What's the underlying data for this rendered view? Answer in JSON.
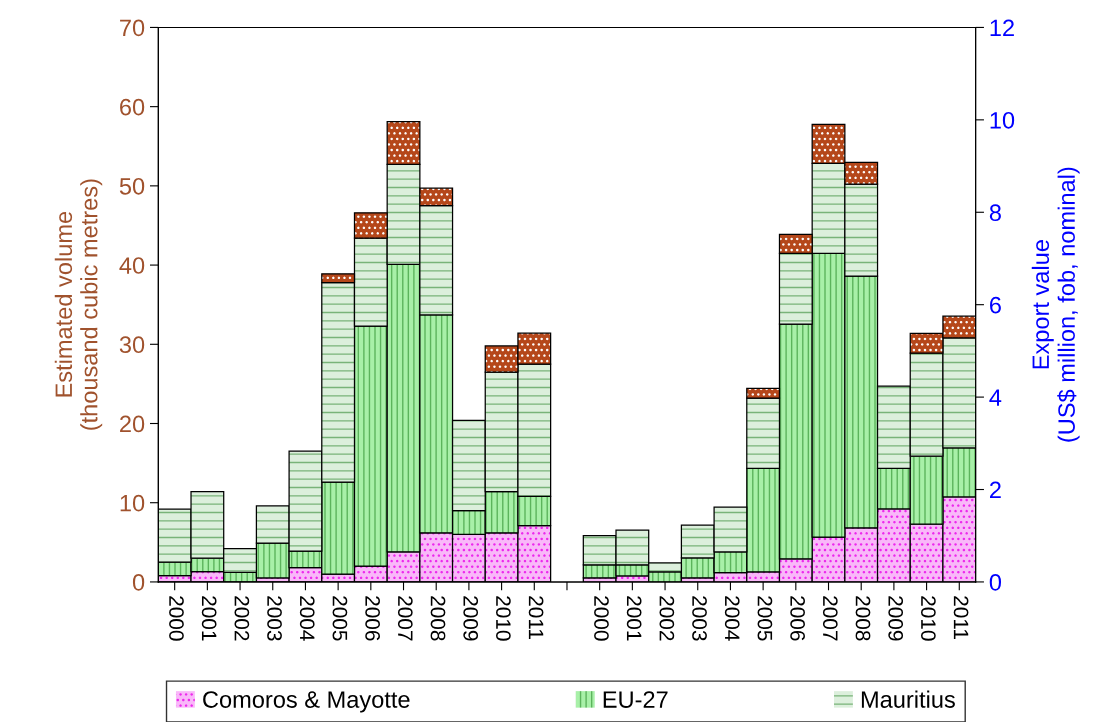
{
  "chart_data": {
    "type": "bar",
    "stacked": true,
    "legend": "bottom",
    "ylabel": "Estimated volume\n(thousand cubic metres)",
    "y2label": "Export value\n(US$ million, fob, nominal)",
    "categories": [
      "2000",
      "2001",
      "2002",
      "2003",
      "2004",
      "2005",
      "2006",
      "2007",
      "2008",
      "2009",
      "2010",
      "2011",
      null,
      "2000",
      "2001",
      "2002",
      "2003",
      "2004",
      "2005",
      "2006",
      "2007",
      "2008",
      "2009",
      "2010",
      "2011"
    ],
    "ylim": [
      0,
      70
    ],
    "yticks": [
      0,
      10,
      20,
      30,
      40,
      50,
      60,
      70
    ],
    "y2lim": [
      0,
      12
    ],
    "y2ticks": [
      0,
      2,
      4,
      6,
      8,
      10,
      12
    ],
    "series": [
      {
        "name": "Comoros & Mayotte",
        "color": "#f9b8f9",
        "values": [
          0.8,
          1.3,
          0,
          0.5,
          1.8,
          1.0,
          2.0,
          3.8,
          6.2,
          6.0,
          6.2,
          7.1,
          null,
          null,
          null,
          null,
          null,
          null,
          null,
          null,
          null,
          null,
          null,
          null,
          null
        ]
      },
      {
        "name": "EU-27",
        "color": "#a8f0a8",
        "values": [
          1.7,
          1.7,
          1.2,
          4.4,
          2.1,
          11.6,
          30.3,
          36.3,
          27.5,
          3.0,
          5.2,
          3.7,
          null,
          null,
          null,
          null,
          null,
          null,
          null,
          null,
          null,
          null,
          null,
          null,
          null
        ]
      },
      {
        "name": "Mauritius",
        "color": "#dcefdc",
        "values": [
          6.7,
          8.4,
          3.0,
          4.7,
          12.6,
          25.2,
          11.1,
          12.6,
          13.8,
          11.4,
          15.1,
          16.7,
          null,
          null,
          null,
          null,
          null,
          null,
          null,
          null,
          null,
          null,
          null,
          null,
          null
        ]
      },
      {
        "color": "#b5471a",
        "values": [
          0,
          0,
          0,
          0,
          0,
          1.1,
          3.2,
          5.4,
          2.2,
          0,
          3.3,
          3.9,
          null,
          null,
          null,
          null,
          null,
          null,
          null,
          null,
          null,
          null,
          null,
          null,
          null
        ]
      },
      {
        "axis": "y2",
        "color": "#f9b8f9",
        "values": [
          null,
          null,
          null,
          null,
          null,
          null,
          null,
          null,
          null,
          null,
          null,
          null,
          null,
          0.09,
          0.13,
          0,
          0.09,
          0.2,
          0.22,
          0.5,
          0.97,
          1.17,
          1.58,
          1.25,
          1.84
        ]
      },
      {
        "axis": "y2",
        "color": "#a8f0a8",
        "values": [
          null,
          null,
          null,
          null,
          null,
          null,
          null,
          null,
          null,
          null,
          null,
          null,
          null,
          0.28,
          0.24,
          0.22,
          0.43,
          0.45,
          2.24,
          5.08,
          6.14,
          5.45,
          0.88,
          1.47,
          1.06
        ]
      },
      {
        "axis": "y2",
        "color": "#dcefdc",
        "values": [
          null,
          null,
          null,
          null,
          null,
          null,
          null,
          null,
          null,
          null,
          null,
          null,
          null,
          0.63,
          0.75,
          0.19,
          0.71,
          0.97,
          1.52,
          1.53,
          1.95,
          1.99,
          1.78,
          2.23,
          2.38
        ]
      },
      {
        "axis": "y2",
        "color": "#b5471a",
        "values": [
          null,
          null,
          null,
          null,
          null,
          null,
          null,
          null,
          null,
          null,
          null,
          null,
          null,
          0,
          0,
          0,
          0,
          0,
          0.21,
          0.41,
          0.84,
          0.47,
          0,
          0.43,
          0.47
        ]
      }
    ]
  }
}
